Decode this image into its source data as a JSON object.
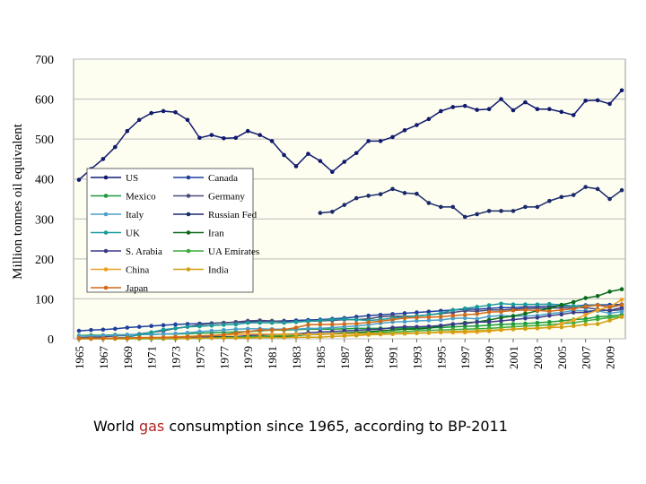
{
  "chart_data": {
    "type": "line",
    "y_label": "Million tonnes oil equivalent",
    "caption": {
      "before": "World ",
      "highlight": "gas",
      "after": " consumption since 1965, according to BP-2011"
    },
    "x": [
      1965,
      1966,
      1967,
      1968,
      1969,
      1970,
      1971,
      1972,
      1973,
      1974,
      1975,
      1976,
      1977,
      1978,
      1979,
      1980,
      1981,
      1982,
      1983,
      1984,
      1985,
      1986,
      1987,
      1988,
      1989,
      1990,
      1991,
      1992,
      1993,
      1994,
      1995,
      1996,
      1997,
      1998,
      1999,
      2000,
      2001,
      2002,
      2003,
      2004,
      2005,
      2006,
      2007,
      2008,
      2009,
      2010
    ],
    "xlim": [
      1965,
      2010
    ],
    "xticks": [
      1965,
      1967,
      1969,
      1971,
      1973,
      1975,
      1977,
      1979,
      1981,
      1983,
      1985,
      1987,
      1989,
      1991,
      1993,
      1995,
      1997,
      1999,
      2001,
      2003,
      2005,
      2007,
      2009
    ],
    "ylim": [
      0,
      700
    ],
    "yticks": [
      0,
      100,
      200,
      300,
      400,
      500,
      600,
      700
    ],
    "grid": true,
    "series": [
      {
        "name": "US",
        "color": "#101a6e",
        "values": [
          398,
          425,
          450,
          480,
          520,
          548,
          565,
          570,
          567,
          548,
          503,
          510,
          502,
          503,
          520,
          510,
          495,
          460,
          432,
          463,
          445,
          418,
          443,
          465,
          495,
          495,
          505,
          522,
          535,
          550,
          570,
          580,
          583,
          573,
          575,
          600,
          572,
          592,
          575,
          575,
          568,
          560,
          596,
          597,
          588,
          622
        ]
      },
      {
        "name": "Canada",
        "color": "#1f3f9f",
        "values": [
          20,
          22,
          23,
          25,
          28,
          30,
          32,
          34,
          36,
          37,
          38,
          39,
          40,
          41,
          43,
          44,
          44,
          45,
          46,
          47,
          48,
          50,
          52,
          55,
          58,
          60,
          62,
          64,
          66,
          68,
          70,
          72,
          74,
          74,
          76,
          78,
          78,
          80,
          80,
          82,
          82,
          82,
          84,
          85,
          85,
          86
        ]
      },
      {
        "name": "Mexico",
        "color": "#1a9a3a",
        "values": [
          8,
          9,
          9,
          10,
          10,
          11,
          11,
          12,
          12,
          13,
          14,
          15,
          16,
          17,
          18,
          20,
          22,
          22,
          23,
          24,
          24,
          24,
          25,
          26,
          26,
          26,
          26,
          27,
          27,
          28,
          28,
          30,
          31,
          32,
          34,
          36,
          37,
          38,
          40,
          42,
          45,
          48,
          50,
          55,
          57,
          60
        ]
      },
      {
        "name": "Germany",
        "color": "#4a4a7a",
        "values": [
          3,
          4,
          5,
          7,
          9,
          12,
          16,
          20,
          26,
          30,
          35,
          38,
          40,
          42,
          45,
          46,
          45,
          43,
          42,
          44,
          45,
          46,
          48,
          48,
          50,
          55,
          57,
          56,
          57,
          60,
          63,
          66,
          70,
          69,
          72,
          72,
          74,
          76,
          76,
          77,
          77,
          78,
          78,
          74,
          70,
          73
        ]
      },
      {
        "name": "Italy",
        "color": "#4aa0cc",
        "values": [
          7,
          7,
          8,
          9,
          10,
          11,
          11,
          12,
          13,
          15,
          18,
          20,
          22,
          24,
          25,
          25,
          24,
          24,
          24,
          26,
          26,
          28,
          30,
          32,
          35,
          39,
          42,
          43,
          45,
          46,
          47,
          51,
          52,
          50,
          56,
          58,
          57,
          57,
          58,
          63,
          66,
          71,
          70,
          70,
          64,
          68
        ]
      },
      {
        "name": "Russian Fed",
        "color": "#1a2a6a",
        "values": [
          null,
          null,
          null,
          null,
          null,
          null,
          null,
          null,
          null,
          null,
          null,
          null,
          null,
          null,
          null,
          null,
          null,
          null,
          null,
          null,
          315,
          318,
          335,
          352,
          358,
          362,
          375,
          365,
          363,
          340,
          330,
          330,
          305,
          312,
          320,
          320,
          320,
          330,
          330,
          345,
          355,
          360,
          380,
          375,
          350,
          372
        ]
      },
      {
        "name": "UK",
        "color": "#1a9a9a",
        "values": [
          1,
          1,
          1,
          2,
          4,
          10,
          16,
          23,
          26,
          30,
          31,
          33,
          35,
          36,
          40,
          40,
          40,
          40,
          42,
          44,
          46,
          48,
          49,
          48,
          46,
          48,
          52,
          55,
          57,
          60,
          64,
          72,
          76,
          80,
          84,
          88,
          86,
          86,
          86,
          87,
          85,
          82,
          82,
          85,
          78,
          85
        ]
      },
      {
        "name": "Iran",
        "color": "#0a6a1a",
        "values": [
          1,
          1,
          1,
          1,
          1,
          2,
          2,
          3,
          3,
          4,
          4,
          5,
          5,
          5,
          6,
          4,
          5,
          6,
          8,
          10,
          12,
          13,
          15,
          16,
          18,
          20,
          22,
          24,
          24,
          26,
          32,
          36,
          40,
          42,
          47,
          53,
          57,
          63,
          70,
          76,
          85,
          92,
          102,
          107,
          118,
          124
        ]
      },
      {
        "name": "S. Arabia",
        "color": "#3a3a8a",
        "values": [
          1,
          1,
          1,
          1,
          1,
          1,
          2,
          2,
          2,
          3,
          4,
          4,
          4,
          5,
          8,
          9,
          11,
          11,
          12,
          15,
          17,
          18,
          20,
          21,
          23,
          24,
          28,
          30,
          30,
          31,
          33,
          37,
          38,
          42,
          42,
          45,
          48,
          51,
          53,
          58,
          61,
          66,
          66,
          72,
          71,
          78
        ]
      },
      {
        "name": "UA Emirates",
        "color": "#3aaa3a",
        "values": [
          0,
          0,
          0,
          0,
          0,
          0,
          0,
          0,
          0,
          1,
          1,
          2,
          3,
          4,
          5,
          6,
          7,
          8,
          9,
          10,
          11,
          12,
          13,
          14,
          15,
          16,
          17,
          18,
          20,
          21,
          22,
          23,
          24,
          25,
          26,
          28,
          30,
          32,
          33,
          35,
          38,
          40,
          45,
          49,
          53,
          55
        ]
      },
      {
        "name": "China",
        "color": "#f0a020",
        "values": [
          1,
          1,
          1,
          1,
          2,
          3,
          3,
          4,
          5,
          6,
          7,
          8,
          9,
          10,
          12,
          12,
          11,
          11,
          11,
          11,
          11,
          12,
          12,
          12,
          13,
          13,
          13,
          14,
          15,
          15,
          16,
          16,
          16,
          17,
          19,
          22,
          24,
          26,
          26,
          29,
          38,
          47,
          60,
          72,
          80,
          98
        ]
      },
      {
        "name": "India",
        "color": "#d0a010",
        "values": [
          0,
          0,
          0,
          0,
          0,
          1,
          1,
          1,
          1,
          1,
          2,
          2,
          2,
          2,
          2,
          3,
          3,
          3,
          4,
          4,
          4,
          6,
          7,
          8,
          10,
          11,
          12,
          13,
          14,
          15,
          17,
          18,
          19,
          20,
          21,
          23,
          24,
          25,
          27,
          28,
          29,
          32,
          36,
          37,
          46,
          55
        ]
      },
      {
        "name": "Japan",
        "color": "#d06a1a",
        "values": [
          1,
          1,
          1,
          2,
          2,
          3,
          3,
          3,
          4,
          5,
          7,
          8,
          10,
          14,
          18,
          22,
          22,
          23,
          28,
          35,
          36,
          36,
          37,
          38,
          41,
          44,
          48,
          52,
          53,
          54,
          55,
          58,
          60,
          62,
          67,
          68,
          71,
          72,
          71,
          69,
          72,
          75,
          81,
          84,
          79,
          85
        ]
      }
    ]
  }
}
